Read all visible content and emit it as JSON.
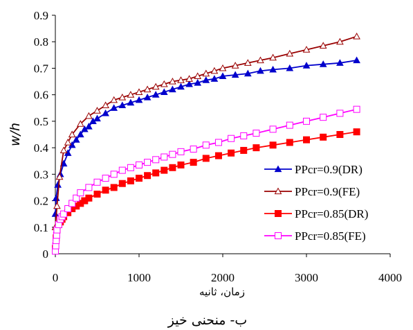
{
  "chart_data": {
    "type": "line",
    "title": "",
    "caption": "ب- منحنی خیز",
    "xlabel": "زمان، ثانیه",
    "ylabel": "w/h",
    "xlim": [
      0,
      4000
    ],
    "ylim": [
      0,
      0.9
    ],
    "xticks": [
      0,
      1000,
      2000,
      3000,
      4000
    ],
    "yticks": [
      0,
      0.1,
      0.2,
      0.3,
      0.4,
      0.5,
      0.6,
      0.7,
      0.8,
      0.9
    ],
    "xtick_labels": [
      "0",
      "1000",
      "2000",
      "3000",
      "4000"
    ],
    "ytick_labels": [
      "0",
      "0.1",
      "0.2",
      "0.3",
      "0.4",
      "0.5",
      "0.6",
      "0.7",
      "0.8",
      "0.9"
    ],
    "grid": false,
    "legend_position": "bottom-right",
    "series": [
      {
        "name": "PPcr=0.9(DR)",
        "color": "#0000cc",
        "marker": "triangle-filled",
        "x": [
          0,
          10,
          30,
          60,
          100,
          150,
          200,
          250,
          300,
          350,
          400,
          450,
          500,
          600,
          700,
          800,
          900,
          1000,
          1100,
          1200,
          1300,
          1400,
          1500,
          1600,
          1700,
          1800,
          1900,
          2000,
          2150,
          2300,
          2450,
          2600,
          2800,
          3000,
          3200,
          3400,
          3600
        ],
        "y": [
          0.15,
          0.21,
          0.26,
          0.3,
          0.34,
          0.38,
          0.41,
          0.43,
          0.45,
          0.47,
          0.48,
          0.5,
          0.51,
          0.53,
          0.55,
          0.56,
          0.57,
          0.58,
          0.59,
          0.6,
          0.61,
          0.62,
          0.63,
          0.64,
          0.645,
          0.655,
          0.66,
          0.67,
          0.675,
          0.68,
          0.69,
          0.695,
          0.7,
          0.71,
          0.715,
          0.72,
          0.73
        ]
      },
      {
        "name": "PPcr=0.9(FE)",
        "color": "#990000",
        "marker": "triangle-open",
        "x": [
          0,
          20,
          50,
          100,
          150,
          200,
          300,
          400,
          500,
          600,
          700,
          800,
          900,
          1000,
          1100,
          1200,
          1300,
          1400,
          1500,
          1600,
          1700,
          1800,
          1900,
          2000,
          2150,
          2300,
          2450,
          2600,
          2800,
          3000,
          3200,
          3400,
          3600
        ],
        "y": [
          0.1,
          0.18,
          0.29,
          0.39,
          0.42,
          0.45,
          0.49,
          0.52,
          0.54,
          0.56,
          0.58,
          0.59,
          0.6,
          0.61,
          0.62,
          0.63,
          0.64,
          0.65,
          0.655,
          0.66,
          0.67,
          0.68,
          0.69,
          0.7,
          0.71,
          0.72,
          0.73,
          0.74,
          0.755,
          0.77,
          0.785,
          0.8,
          0.82
        ]
      },
      {
        "name": "PPcr=0.85(DR)",
        "color": "#ff0000",
        "marker": "square-filled",
        "x": [
          0,
          10,
          20,
          40,
          60,
          80,
          100,
          150,
          200,
          250,
          300,
          350,
          400,
          500,
          600,
          700,
          800,
          900,
          1000,
          1100,
          1200,
          1300,
          1400,
          1500,
          1650,
          1800,
          1950,
          2100,
          2250,
          2400,
          2600,
          2800,
          3000,
          3200,
          3400,
          3600
        ],
        "y": [
          0.02,
          0.06,
          0.09,
          0.11,
          0.12,
          0.13,
          0.14,
          0.155,
          0.17,
          0.18,
          0.19,
          0.2,
          0.21,
          0.225,
          0.24,
          0.25,
          0.265,
          0.275,
          0.285,
          0.295,
          0.305,
          0.315,
          0.325,
          0.335,
          0.345,
          0.36,
          0.37,
          0.38,
          0.39,
          0.4,
          0.41,
          0.42,
          0.43,
          0.44,
          0.45,
          0.46
        ]
      },
      {
        "name": "PPcr=0.85(FE)",
        "color": "#ff00ff",
        "marker": "square-open",
        "x": [
          0,
          5,
          10,
          15,
          20,
          40,
          60,
          80,
          100,
          150,
          200,
          250,
          300,
          400,
          500,
          600,
          700,
          800,
          900,
          1000,
          1100,
          1200,
          1300,
          1400,
          1500,
          1650,
          1800,
          1950,
          2100,
          2250,
          2400,
          2600,
          2800,
          3000,
          3200,
          3400,
          3600
        ],
        "y": [
          0.01,
          0.03,
          0.05,
          0.07,
          0.09,
          0.11,
          0.13,
          0.14,
          0.15,
          0.17,
          0.19,
          0.21,
          0.23,
          0.25,
          0.27,
          0.285,
          0.3,
          0.315,
          0.325,
          0.335,
          0.345,
          0.355,
          0.365,
          0.375,
          0.385,
          0.395,
          0.41,
          0.42,
          0.435,
          0.445,
          0.455,
          0.47,
          0.485,
          0.5,
          0.515,
          0.53,
          0.545
        ]
      }
    ]
  }
}
